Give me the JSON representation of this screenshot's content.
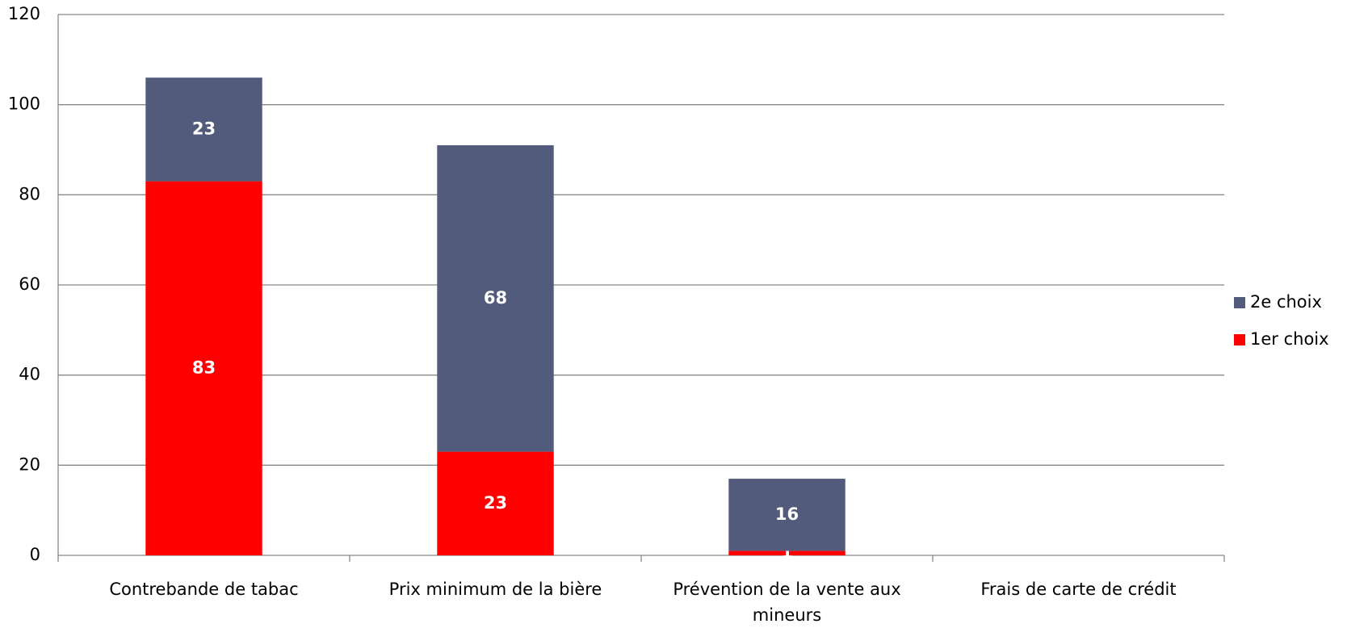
{
  "chart_data": {
    "type": "stacked-bar",
    "categories": [
      "Contrebande de tabac",
      "Prix minimum de la bière",
      "Prévention de la vente aux mineurs",
      "Frais de carte de crédit"
    ],
    "series": [
      {
        "name": "1er choix",
        "color": "#ff0000",
        "values": [
          83,
          23,
          1,
          null
        ]
      },
      {
        "name": "2e choix",
        "color": "#525b7b",
        "values": [
          23,
          68,
          16,
          null
        ]
      }
    ],
    "ylim": [
      0,
      120
    ],
    "yticks": [
      0,
      20,
      40,
      60,
      80,
      100,
      120
    ],
    "grid": true,
    "legend": "right"
  }
}
